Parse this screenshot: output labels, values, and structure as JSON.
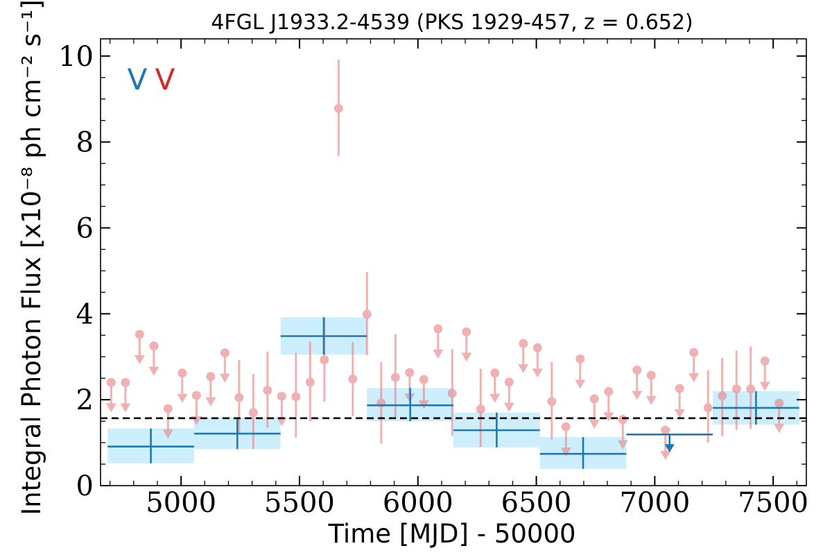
{
  "chart_data": {
    "type": "scatter",
    "title": "4FGL J1933.2-4539 (PKS 1929-457, z = 0.652)",
    "xlabel": "Time [MJD] - 50000",
    "ylabel": "Integral Photon Flux [x10⁻⁸ ph cm⁻² s⁻¹]",
    "xlim": [
      4660,
      7640
    ],
    "ylim": [
      0,
      10.4
    ],
    "xticks": [
      5000,
      5500,
      6000,
      6500,
      7000,
      7500
    ],
    "yticks": [
      0,
      2,
      4,
      6,
      8,
      10
    ],
    "grid": false,
    "legend_placement": "top-left",
    "legend_marks": [
      {
        "label": "V",
        "color": "#1f77b4"
      },
      {
        "label": "V",
        "color": "#d62728"
      }
    ],
    "mean_flux": 1.57,
    "colors": {
      "long_bin": "#1f77b4",
      "long_bin_band": "#cdeefc",
      "short_bin": "#e88888",
      "mean_line": "#000000"
    },
    "series": [
      {
        "kind": "long_bins",
        "bins": [
          {
            "x0": 4690,
            "x1": 5055,
            "y": 0.91,
            "ylo": 0.52,
            "yhi": 1.33,
            "upper_limit": false
          },
          {
            "x0": 5055,
            "x1": 5420,
            "y": 1.21,
            "ylo": 0.85,
            "yhi": 1.59,
            "upper_limit": false
          },
          {
            "x0": 5420,
            "x1": 5785,
            "y": 3.48,
            "ylo": 3.05,
            "yhi": 3.92,
            "upper_limit": false
          },
          {
            "x0": 5785,
            "x1": 6150,
            "y": 1.87,
            "ylo": 1.5,
            "yhi": 2.27,
            "upper_limit": false
          },
          {
            "x0": 6150,
            "x1": 6515,
            "y": 1.29,
            "ylo": 0.89,
            "yhi": 1.7,
            "upper_limit": false
          },
          {
            "x0": 6515,
            "x1": 6880,
            "y": 0.74,
            "ylo": 0.39,
            "yhi": 1.13,
            "upper_limit": false
          },
          {
            "x0": 6880,
            "x1": 7245,
            "y": 1.19,
            "upper_limit": true
          },
          {
            "x0": 7245,
            "x1": 7610,
            "y": 1.81,
            "ylo": 1.42,
            "yhi": 2.2,
            "upper_limit": false
          }
        ]
      },
      {
        "kind": "short_bins",
        "points": [
          {
            "x": 4705,
            "y": 2.4,
            "upper_limit": true
          },
          {
            "x": 4765,
            "y": 2.4,
            "upper_limit": true
          },
          {
            "x": 4825,
            "y": 3.52,
            "upper_limit": true
          },
          {
            "x": 4885,
            "y": 3.25,
            "upper_limit": true
          },
          {
            "x": 4945,
            "y": 1.79,
            "upper_limit": true
          },
          {
            "x": 5005,
            "y": 2.62,
            "upper_limit": true
          },
          {
            "x": 5065,
            "y": 2.1,
            "upper_limit": true
          },
          {
            "x": 5125,
            "y": 2.54,
            "upper_limit": true
          },
          {
            "x": 5185,
            "y": 3.09,
            "upper_limit": true
          },
          {
            "x": 5245,
            "y": 2.05,
            "ylo": 1.2,
            "yhi": 2.92,
            "upper_limit": false
          },
          {
            "x": 5305,
            "y": 1.7,
            "ylo": 0.85,
            "yhi": 2.6,
            "upper_limit": false
          },
          {
            "x": 5365,
            "y": 2.22,
            "ylo": 1.35,
            "yhi": 3.12,
            "upper_limit": false
          },
          {
            "x": 5425,
            "y": 2.08,
            "upper_limit": true
          },
          {
            "x": 5485,
            "y": 2.07,
            "ylo": 1.12,
            "yhi": 3.08,
            "upper_limit": false
          },
          {
            "x": 5545,
            "y": 2.41,
            "ylo": 1.5,
            "yhi": 3.35,
            "upper_limit": false
          },
          {
            "x": 5605,
            "y": 2.93,
            "ylo": 1.96,
            "yhi": 3.9,
            "upper_limit": false
          },
          {
            "x": 5665,
            "y": 8.78,
            "ylo": 7.67,
            "yhi": 9.92,
            "upper_limit": false
          },
          {
            "x": 5725,
            "y": 2.48,
            "ylo": 1.62,
            "yhi": 3.34,
            "upper_limit": false
          },
          {
            "x": 5785,
            "y": 3.99,
            "ylo": 3.04,
            "yhi": 4.97,
            "upper_limit": false
          },
          {
            "x": 5845,
            "y": 1.92,
            "ylo": 0.98,
            "yhi": 2.88,
            "upper_limit": false
          },
          {
            "x": 5905,
            "y": 2.52,
            "ylo": 1.56,
            "yhi": 3.52,
            "upper_limit": false
          },
          {
            "x": 5965,
            "y": 2.63,
            "upper_limit": true
          },
          {
            "x": 6025,
            "y": 2.47,
            "upper_limit": true
          },
          {
            "x": 6085,
            "y": 3.65,
            "upper_limit": true
          },
          {
            "x": 6145,
            "y": 2.15,
            "ylo": 1.15,
            "yhi": 3.18,
            "upper_limit": false
          },
          {
            "x": 6205,
            "y": 3.58,
            "upper_limit": true
          },
          {
            "x": 6265,
            "y": 1.78,
            "ylo": 0.9,
            "yhi": 2.72,
            "upper_limit": false
          },
          {
            "x": 6325,
            "y": 2.62,
            "upper_limit": true
          },
          {
            "x": 6385,
            "y": 2.41,
            "upper_limit": true
          },
          {
            "x": 6445,
            "y": 3.31,
            "upper_limit": true
          },
          {
            "x": 6505,
            "y": 3.21,
            "upper_limit": true
          },
          {
            "x": 6565,
            "y": 1.96,
            "ylo": 1.08,
            "yhi": 2.88,
            "upper_limit": false
          },
          {
            "x": 6625,
            "y": 1.37,
            "upper_limit": true
          },
          {
            "x": 6685,
            "y": 2.95,
            "upper_limit": true
          },
          {
            "x": 6745,
            "y": 2.02,
            "upper_limit": true
          },
          {
            "x": 6805,
            "y": 2.19,
            "upper_limit": true
          },
          {
            "x": 6865,
            "y": 1.54,
            "upper_limit": true
          },
          {
            "x": 6925,
            "y": 2.69,
            "upper_limit": true
          },
          {
            "x": 6985,
            "y": 2.57,
            "upper_limit": true
          },
          {
            "x": 7045,
            "y": 1.29,
            "upper_limit": true
          },
          {
            "x": 7105,
            "y": 2.26,
            "upper_limit": true
          },
          {
            "x": 7165,
            "y": 3.1,
            "upper_limit": true
          },
          {
            "x": 7225,
            "y": 1.81,
            "ylo": 1.0,
            "yhi": 2.68,
            "upper_limit": false
          },
          {
            "x": 7285,
            "y": 2.09,
            "ylo": 1.15,
            "yhi": 2.97,
            "upper_limit": false
          },
          {
            "x": 7345,
            "y": 2.25,
            "ylo": 1.3,
            "yhi": 3.14,
            "upper_limit": false
          },
          {
            "x": 7405,
            "y": 2.25,
            "ylo": 1.32,
            "yhi": 3.24,
            "upper_limit": false
          },
          {
            "x": 7465,
            "y": 2.9,
            "upper_limit": true
          },
          {
            "x": 7525,
            "y": 1.92,
            "upper_limit": true
          }
        ]
      }
    ]
  }
}
